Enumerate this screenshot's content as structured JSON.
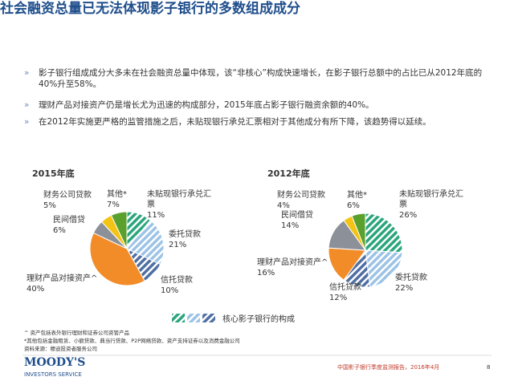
{
  "header": {
    "title": "社会融资总量已无法体现影子银行的多数组成成分"
  },
  "bullets": [
    "影子银行组成成分大多未在社会融资总量中体现，该“非核心”构成快速增长，在影子银行总额中的占比已从2012年底的40%升至58%。",
    "理财产品对接资产仍是增长尤为迅速的构成部分，2015年底占影子银行融资余额的40%。",
    "在2012年实施更严格的监管措施之后，未贴现银行承兑汇票相对于其他成分有所下降，该趋势得以延续。"
  ],
  "chart_data": [
    {
      "type": "pie",
      "title": "2015年底",
      "categories": [
        "未贴现银行承兑汇票",
        "委托贷款",
        "信托贷款",
        "理财产品对接资产^",
        "民间借贷",
        "财务公司贷款",
        "其他*"
      ],
      "values": [
        11,
        21,
        10,
        40,
        6,
        5,
        7
      ],
      "value_labels": [
        "11%",
        "21%",
        "10%",
        "40%",
        "6%",
        "5%",
        "7%"
      ],
      "colors": [
        "#2ba57c",
        "#9cc3e6",
        "#4f6fa3",
        "#f28c28",
        "#8c9098",
        "#f3c316",
        "#5aa02c"
      ],
      "hatched": [
        true,
        true,
        true,
        false,
        false,
        false,
        false
      ]
    },
    {
      "type": "pie",
      "title": "2012年底",
      "categories": [
        "未贴现银行承兑汇票",
        "委托贷款",
        "信托贷款",
        "理财产品对接资产^",
        "民间借贷",
        "财务公司贷款",
        "其他*"
      ],
      "values": [
        26,
        22,
        12,
        16,
        14,
        4,
        6
      ],
      "value_labels": [
        "26%",
        "22%",
        "12%",
        "16%",
        "14%",
        "4%",
        "6%"
      ],
      "colors": [
        "#2ba57c",
        "#9cc3e6",
        "#4f6fa3",
        "#f28c28",
        "#8c9098",
        "#f3c316",
        "#5aa02c"
      ],
      "hatched": [
        true,
        true,
        true,
        false,
        false,
        false,
        false
      ]
    }
  ],
  "legend": {
    "label": "核心影子银行的构成",
    "colors": [
      "#2ba57c",
      "#9cc3e6",
      "#4f6fa3"
    ]
  },
  "footnotes": [
    "^ 资产包括表外银行理财和证券公司资管产品",
    "*其他包括金融租赁、小额贷款、典当行贷款、P2P网络贷款、资产支持证券以及消费金融公司",
    "资料来源：穆迪投资者服务公司"
  ],
  "footer": {
    "brand": "MOODY'S",
    "brand_sub": "INVESTORS SERVICE",
    "report": "中国影子银行季度监测报告，2016年4月",
    "page": "8"
  }
}
